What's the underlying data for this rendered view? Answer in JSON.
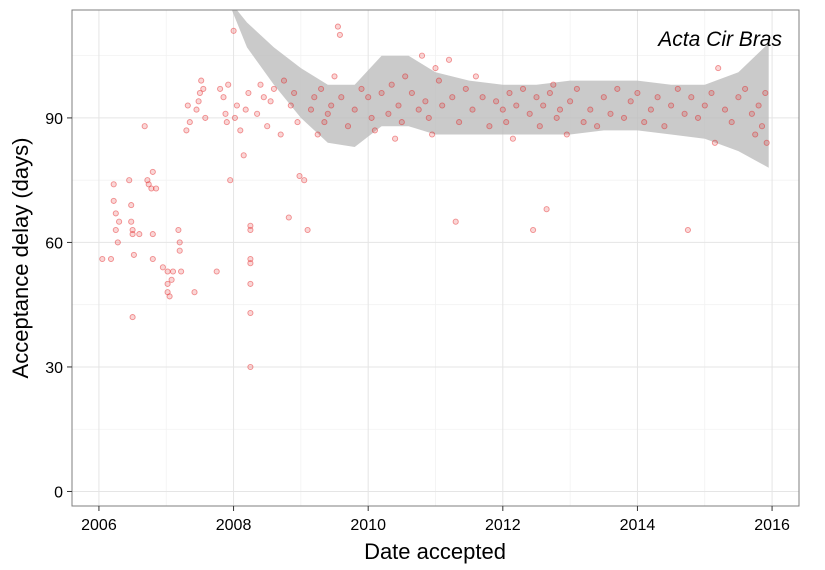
{
  "chart_data": {
    "type": "scatter",
    "title": "",
    "annotation": "Acta Cir Bras",
    "xlabel": "Date accepted",
    "ylabel": "Acceptance delay (days)",
    "xlim": [
      2005.6,
      2016.4
    ],
    "ylim": [
      -3.5,
      116
    ],
    "x_ticks": [
      2006,
      2008,
      2010,
      2012,
      2014,
      2016
    ],
    "y_ticks": [
      0,
      30,
      60,
      90
    ],
    "grid": true,
    "point_color": "#e31a1c",
    "band_color": "#bdbdbd",
    "points": [
      [
        2006.05,
        56
      ],
      [
        2006.18,
        56
      ],
      [
        2006.22,
        74
      ],
      [
        2006.22,
        70
      ],
      [
        2006.25,
        67
      ],
      [
        2006.25,
        63
      ],
      [
        2006.28,
        60
      ],
      [
        2006.3,
        65
      ],
      [
        2006.45,
        75
      ],
      [
        2006.48,
        69
      ],
      [
        2006.48,
        65
      ],
      [
        2006.5,
        63
      ],
      [
        2006.5,
        62
      ],
      [
        2006.52,
        57
      ],
      [
        2006.5,
        42
      ],
      [
        2006.6,
        62
      ],
      [
        2006.68,
        88
      ],
      [
        2006.72,
        75
      ],
      [
        2006.74,
        74
      ],
      [
        2006.78,
        73
      ],
      [
        2006.8,
        77
      ],
      [
        2006.85,
        73
      ],
      [
        2006.8,
        62
      ],
      [
        2006.8,
        56
      ],
      [
        2006.95,
        54
      ],
      [
        2007.02,
        53
      ],
      [
        2007.02,
        50
      ],
      [
        2007.02,
        48
      ],
      [
        2007.05,
        47
      ],
      [
        2007.08,
        51
      ],
      [
        2007.1,
        53
      ],
      [
        2007.18,
        63
      ],
      [
        2007.2,
        60
      ],
      [
        2007.2,
        58
      ],
      [
        2007.22,
        53
      ],
      [
        2007.3,
        87
      ],
      [
        2007.32,
        93
      ],
      [
        2007.35,
        89
      ],
      [
        2007.42,
        48
      ],
      [
        2007.45,
        92
      ],
      [
        2007.48,
        94
      ],
      [
        2007.5,
        96
      ],
      [
        2007.52,
        99
      ],
      [
        2007.55,
        97
      ],
      [
        2007.58,
        90
      ],
      [
        2007.75,
        53
      ],
      [
        2007.8,
        97
      ],
      [
        2007.85,
        95
      ],
      [
        2007.88,
        91
      ],
      [
        2007.9,
        89
      ],
      [
        2007.92,
        98
      ],
      [
        2007.95,
        75
      ],
      [
        2008.0,
        111
      ],
      [
        2008.02,
        90
      ],
      [
        2008.05,
        93
      ],
      [
        2008.1,
        87
      ],
      [
        2008.15,
        81
      ],
      [
        2008.18,
        92
      ],
      [
        2008.22,
        96
      ],
      [
        2008.25,
        64
      ],
      [
        2008.25,
        63
      ],
      [
        2008.25,
        56
      ],
      [
        2008.25,
        55
      ],
      [
        2008.25,
        50
      ],
      [
        2008.25,
        43
      ],
      [
        2008.25,
        30
      ],
      [
        2008.35,
        91
      ],
      [
        2008.4,
        98
      ],
      [
        2008.45,
        95
      ],
      [
        2008.5,
        88
      ],
      [
        2008.55,
        94
      ],
      [
        2008.6,
        97
      ],
      [
        2008.7,
        86
      ],
      [
        2008.75,
        99
      ],
      [
        2008.82,
        66
      ],
      [
        2008.85,
        93
      ],
      [
        2008.9,
        96
      ],
      [
        2008.95,
        89
      ],
      [
        2008.98,
        76
      ],
      [
        2009.05,
        75
      ],
      [
        2009.1,
        63
      ],
      [
        2009.15,
        92
      ],
      [
        2009.2,
        95
      ],
      [
        2009.25,
        86
      ],
      [
        2009.3,
        97
      ],
      [
        2009.35,
        89
      ],
      [
        2009.4,
        91
      ],
      [
        2009.45,
        93
      ],
      [
        2009.5,
        100
      ],
      [
        2009.55,
        112
      ],
      [
        2009.58,
        110
      ],
      [
        2009.6,
        95
      ],
      [
        2009.7,
        88
      ],
      [
        2009.8,
        92
      ],
      [
        2009.9,
        97
      ],
      [
        2010.0,
        95
      ],
      [
        2010.05,
        90
      ],
      [
        2010.1,
        87
      ],
      [
        2010.2,
        96
      ],
      [
        2010.3,
        91
      ],
      [
        2010.35,
        98
      ],
      [
        2010.4,
        85
      ],
      [
        2010.45,
        93
      ],
      [
        2010.5,
        89
      ],
      [
        2010.55,
        100
      ],
      [
        2010.65,
        96
      ],
      [
        2010.75,
        92
      ],
      [
        2010.8,
        105
      ],
      [
        2010.85,
        94
      ],
      [
        2010.9,
        90
      ],
      [
        2010.95,
        86
      ],
      [
        2011.0,
        102
      ],
      [
        2011.05,
        99
      ],
      [
        2011.1,
        93
      ],
      [
        2011.2,
        104
      ],
      [
        2011.25,
        95
      ],
      [
        2011.3,
        65
      ],
      [
        2011.35,
        89
      ],
      [
        2011.45,
        97
      ],
      [
        2011.55,
        92
      ],
      [
        2011.6,
        100
      ],
      [
        2011.7,
        95
      ],
      [
        2011.8,
        88
      ],
      [
        2011.9,
        94
      ],
      [
        2012.0,
        92
      ],
      [
        2012.05,
        89
      ],
      [
        2012.1,
        96
      ],
      [
        2012.15,
        85
      ],
      [
        2012.2,
        93
      ],
      [
        2012.3,
        97
      ],
      [
        2012.4,
        91
      ],
      [
        2012.45,
        63
      ],
      [
        2012.5,
        95
      ],
      [
        2012.55,
        88
      ],
      [
        2012.6,
        93
      ],
      [
        2012.65,
        68
      ],
      [
        2012.7,
        96
      ],
      [
        2012.75,
        98
      ],
      [
        2012.8,
        90
      ],
      [
        2012.85,
        92
      ],
      [
        2012.95,
        86
      ],
      [
        2013.0,
        94
      ],
      [
        2013.1,
        97
      ],
      [
        2013.2,
        89
      ],
      [
        2013.3,
        92
      ],
      [
        2013.4,
        88
      ],
      [
        2013.5,
        95
      ],
      [
        2013.6,
        91
      ],
      [
        2013.7,
        97
      ],
      [
        2013.8,
        90
      ],
      [
        2013.9,
        94
      ],
      [
        2014.0,
        96
      ],
      [
        2014.1,
        89
      ],
      [
        2014.2,
        92
      ],
      [
        2014.3,
        95
      ],
      [
        2014.4,
        88
      ],
      [
        2014.5,
        93
      ],
      [
        2014.6,
        97
      ],
      [
        2014.7,
        91
      ],
      [
        2014.75,
        63
      ],
      [
        2014.8,
        95
      ],
      [
        2014.9,
        90
      ],
      [
        2015.0,
        93
      ],
      [
        2015.1,
        96
      ],
      [
        2015.15,
        84
      ],
      [
        2015.2,
        102
      ],
      [
        2015.3,
        92
      ],
      [
        2015.4,
        89
      ],
      [
        2015.5,
        95
      ],
      [
        2015.6,
        97
      ],
      [
        2015.7,
        91
      ],
      [
        2015.75,
        86
      ],
      [
        2015.8,
        93
      ],
      [
        2015.85,
        88
      ],
      [
        2015.9,
        96
      ],
      [
        2015.92,
        84
      ]
    ],
    "smooth_band": {
      "x": [
        2007.9,
        2008.2,
        2008.6,
        2009.0,
        2009.4,
        2009.8,
        2010.2,
        2010.6,
        2011.0,
        2011.5,
        2012.0,
        2012.5,
        2013.0,
        2013.5,
        2014.0,
        2014.5,
        2015.0,
        2015.5,
        2015.95
      ],
      "upper": [
        119,
        113,
        107,
        102,
        98,
        98,
        105,
        105,
        101,
        99,
        98,
        98,
        99,
        99,
        99,
        98,
        98,
        101,
        108
      ],
      "lower": [
        119,
        107,
        98,
        90,
        84,
        83,
        88,
        88,
        86,
        86,
        86,
        86,
        86,
        87,
        87,
        86,
        85,
        82,
        78
      ]
    }
  }
}
